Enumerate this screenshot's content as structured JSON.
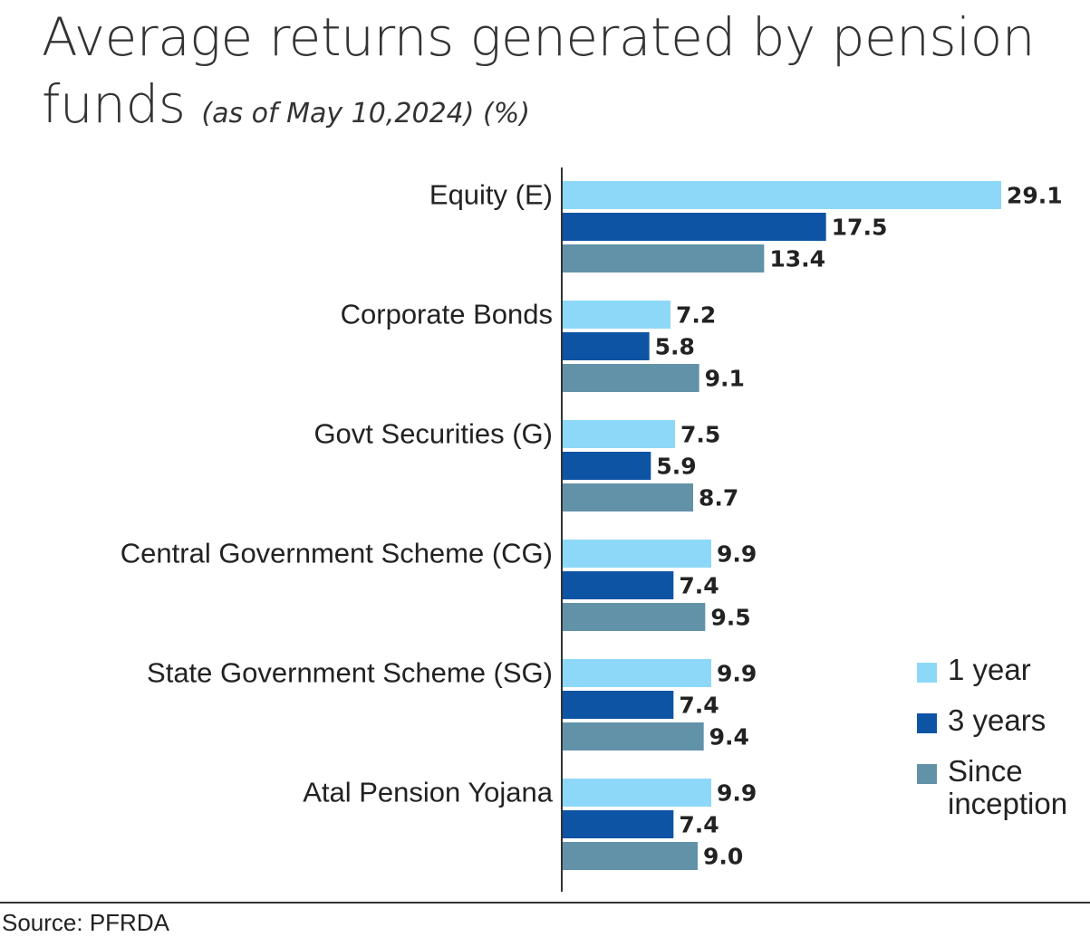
{
  "title": "Average returns generated by pension funds",
  "subtitle": "(as of May 10,2024) (%)",
  "source": "Source: PFRDA",
  "colors": {
    "one_year": "#8dd8f8",
    "three_years": "#0e54a4",
    "since_inception": "#6292a8"
  },
  "chart_data": {
    "type": "bar",
    "orientation": "horizontal",
    "categories": [
      "Equity (E)",
      "Corporate Bonds",
      "Govt Securities (G)",
      "Central Government Scheme (CG)",
      "State Government Scheme (SG)",
      "Atal Pension Yojana"
    ],
    "series": [
      {
        "name": "1 year",
        "values": [
          29.1,
          7.2,
          7.5,
          9.9,
          9.9,
          9.9
        ],
        "labels": [
          "29.1",
          "7.2",
          "7.5",
          "9.9",
          "9.9",
          "9.9"
        ]
      },
      {
        "name": "3 years",
        "values": [
          17.5,
          5.8,
          5.9,
          7.4,
          7.4,
          7.4
        ],
        "labels": [
          "17.5",
          "5.8",
          "5.9",
          "7.4",
          "7.4",
          "7.4"
        ]
      },
      {
        "name": "Since inception",
        "values": [
          13.4,
          9.1,
          8.7,
          9.5,
          9.4,
          9.0
        ],
        "labels": [
          "13.4",
          "9.1",
          "8.7",
          "9.5",
          "9.4",
          "9.0"
        ]
      }
    ],
    "xlim": [
      0,
      29.1
    ],
    "grid": false,
    "legend_position": "bottom-right"
  },
  "legend": {
    "items": [
      "1 year",
      "3 years",
      "Since\ninception"
    ]
  }
}
